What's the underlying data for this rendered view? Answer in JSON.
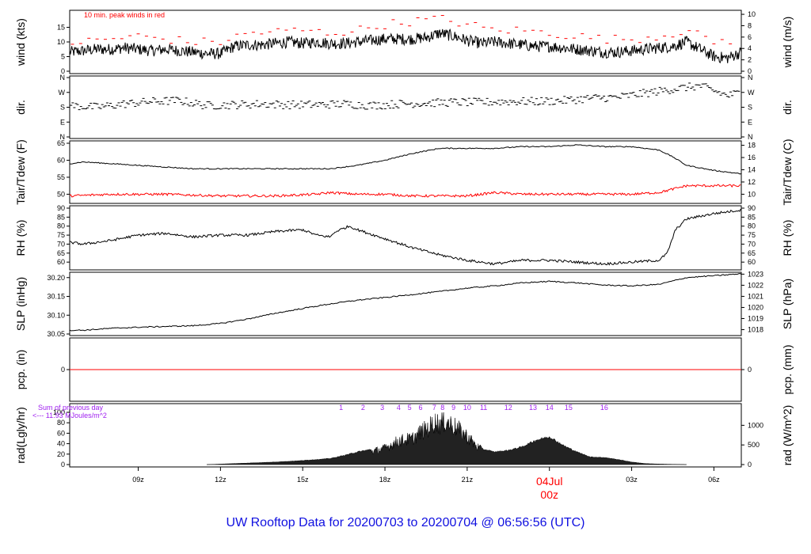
{
  "title": "UW Rooftop Data for 20200703  to  20200704 @ 06:56:56  (UTC)",
  "colors": {
    "title": "#1010e0",
    "peak": "#ff0000",
    "dew": "#ff0000",
    "rad_note": "#a020f0",
    "line": "#000000"
  },
  "x_axis": {
    "ticks": [
      "09z",
      "12z",
      "15z",
      "18z",
      "21z",
      "00z",
      "03z",
      "06z"
    ],
    "date_label": "04Jul",
    "date_tick_label": "00z"
  },
  "chart_data": [
    {
      "id": "wind",
      "type": "line",
      "ylabel_left": "wind (kts)",
      "ylabel_right": "wind (m/s)",
      "annotation": "10 min. peak winds in red",
      "yticks_left": [
        0,
        5,
        10,
        15
      ],
      "yticks_right": [
        0,
        2,
        4,
        6,
        8,
        10
      ],
      "ylim": [
        0,
        20
      ],
      "series": [
        {
          "key": "wind",
          "hours": [
            6.5,
            7,
            7.5,
            8,
            8.5,
            9,
            9.5,
            10,
            10.5,
            11,
            11.5,
            12,
            12.5,
            13,
            13.5,
            14,
            14.5,
            15,
            15.5,
            16,
            16.5,
            17,
            17.5,
            18,
            18.5,
            19,
            19.5,
            20,
            20.5,
            21,
            21.5,
            22,
            22.5,
            23,
            23.5,
            24,
            24.5,
            25,
            25.5,
            26,
            26.5,
            27,
            27.5,
            28,
            28.5,
            29,
            29.5,
            30,
            30.5,
            31
          ],
          "values": [
            6.5,
            7,
            7.5,
            7.5,
            8,
            7.5,
            7,
            7.5,
            7,
            6.5,
            6,
            6,
            8.5,
            9,
            9,
            9.5,
            10,
            9.5,
            10,
            9.5,
            9.5,
            10,
            10.5,
            11,
            11,
            11,
            11.5,
            13,
            12,
            10.5,
            9.5,
            10,
            9.5,
            9,
            8.5,
            8.5,
            8,
            7.5,
            7,
            6.5,
            6.5,
            7,
            7.5,
            8,
            8.5,
            10,
            7.5,
            5,
            4.5,
            6.5
          ]
        },
        {
          "key": "peak",
          "hours": [
            7,
            8,
            9,
            10,
            11,
            12,
            13,
            14,
            15,
            16,
            17,
            18,
            19,
            20,
            21,
            22,
            23,
            24,
            25,
            26,
            27,
            28,
            29,
            30,
            31
          ],
          "values": [
            10,
            11,
            12,
            11,
            10,
            10,
            13,
            13.5,
            14,
            13,
            14,
            16,
            17,
            18,
            16,
            14,
            14,
            13,
            12,
            11,
            11,
            12,
            14,
            10,
            11
          ]
        }
      ]
    },
    {
      "id": "dir",
      "type": "scatter",
      "ylabel_left": "dir.",
      "ylabel_right": "dir.",
      "ytick_labels": [
        "N",
        "E",
        "S",
        "W",
        "N"
      ],
      "yticks_deg": [
        0,
        90,
        180,
        270,
        360
      ],
      "ylim": [
        0,
        360
      ],
      "series": [
        {
          "key": "dir",
          "hours": [
            6.5,
            7.5,
            8.5,
            9.5,
            10.5,
            11.5,
            12.5,
            13.5,
            14.5,
            15.5,
            16.5,
            17.5,
            18.5,
            19.5,
            20.5,
            21.5,
            22.5,
            23.5,
            24.5,
            25.5,
            26.5,
            27.5,
            28.5,
            29.5,
            30.5,
            31
          ],
          "values": [
            190,
            180,
            200,
            215,
            220,
            190,
            195,
            200,
            195,
            195,
            200,
            190,
            200,
            205,
            210,
            210,
            215,
            215,
            220,
            235,
            240,
            265,
            290,
            310,
            250,
            270
          ]
        }
      ]
    },
    {
      "id": "temp",
      "type": "line",
      "ylabel_left": "Tair/Tdew (F)",
      "ylabel_right": "Tair/Tdew (C)",
      "yticks_left": [
        50,
        55,
        60,
        65
      ],
      "yticks_right": [
        10,
        12,
        14,
        16,
        18
      ],
      "ylim": [
        48,
        65
      ],
      "series": [
        {
          "key": "tair",
          "hours": [
            6.5,
            7,
            8,
            9,
            10,
            11,
            12,
            13,
            14,
            15,
            16,
            17,
            18,
            19,
            20,
            21,
            22,
            23,
            24,
            25,
            26,
            27,
            28,
            28.5,
            29,
            30,
            31
          ],
          "values": [
            59,
            59.5,
            59,
            58.5,
            58,
            57.5,
            57.5,
            57.5,
            57.5,
            57.5,
            57.5,
            58.5,
            60,
            62,
            63.5,
            63.5,
            63.5,
            64,
            64,
            64.5,
            64,
            64,
            63,
            61,
            58.5,
            57,
            56
          ]
        },
        {
          "key": "tdew",
          "hours": [
            6.5,
            8,
            10,
            12,
            14,
            15.5,
            16,
            17,
            18,
            19,
            20,
            21,
            22,
            23,
            24,
            25,
            26,
            27,
            28,
            28.5,
            29,
            30,
            31
          ],
          "values": [
            49.5,
            50,
            50,
            49.5,
            49.5,
            50,
            50.5,
            50,
            50,
            49.5,
            49.5,
            49.5,
            50.5,
            50,
            50,
            50,
            50,
            50,
            50.5,
            51.5,
            52.5,
            52.5,
            52.5
          ]
        }
      ]
    },
    {
      "id": "rh",
      "type": "line",
      "ylabel_left": "RH (%)",
      "ylabel_right": "RH (%)",
      "yticks": [
        60,
        65,
        70,
        75,
        80,
        85,
        90
      ],
      "ylim": [
        57,
        90
      ],
      "series": [
        {
          "key": "rh",
          "hours": [
            6.5,
            7,
            8,
            9,
            10,
            11,
            12,
            13,
            14,
            15,
            15.5,
            16,
            16.2,
            16.7,
            17,
            18,
            19,
            20,
            21,
            22,
            23,
            24,
            25,
            26,
            27,
            28,
            28.3,
            28.6,
            29,
            30,
            31
          ],
          "values": [
            71,
            70,
            72,
            75,
            76,
            74,
            75,
            75,
            77,
            78,
            75,
            74,
            77,
            80,
            78,
            73,
            68,
            64,
            61,
            59,
            61,
            61,
            60,
            59,
            60,
            61,
            65,
            78,
            84,
            87,
            89
          ]
        }
      ]
    },
    {
      "id": "slp",
      "type": "line",
      "ylabel_left": "SLP (inHg)",
      "ylabel_right": "SLP (hPa)",
      "yticks_left_values": [
        30.05,
        30.1,
        30.15,
        30.2
      ],
      "yticks_left_labels": [
        "30.05",
        "30.10",
        "30.15",
        "30.20"
      ],
      "yticks_right_values": [
        1018,
        1019,
        1020,
        1021,
        1022,
        1023
      ],
      "yticks_right_labels": [
        "1018",
        "1019",
        "1020",
        "1021",
        "1022",
        "1023"
      ],
      "ylim": [
        30.05,
        30.21
      ],
      "series": [
        {
          "key": "slp",
          "hours": [
            6.5,
            7,
            8,
            9,
            10,
            11,
            12,
            13,
            14,
            15,
            16,
            17,
            18,
            19,
            20,
            21,
            22,
            23,
            24,
            25,
            26,
            27,
            28,
            29,
            30,
            31
          ],
          "values": [
            30.06,
            30.06,
            30.065,
            30.068,
            30.07,
            30.072,
            30.078,
            30.09,
            30.105,
            30.118,
            30.13,
            30.14,
            30.147,
            30.155,
            30.163,
            30.172,
            30.178,
            30.186,
            30.19,
            30.186,
            30.18,
            30.178,
            30.182,
            30.2,
            30.205,
            30.21
          ]
        }
      ]
    },
    {
      "id": "pcp",
      "type": "line",
      "ylabel_left": "pcp. (in)",
      "ylabel_right": "pcp. (mm)",
      "ytick_left": "0",
      "ytick_right": "0",
      "ylim": [
        -1,
        1
      ],
      "series": [
        {
          "key": "pcp",
          "hours": [
            6.5,
            31
          ],
          "values": [
            0,
            0
          ]
        }
      ]
    },
    {
      "id": "rad",
      "type": "area",
      "ylabel_left": "rad(Lgly/hr)",
      "ylabel_right": "rad (W/m^2)",
      "note_line1": "Sum of previous day",
      "note_line2": "<--- 11.93 MJoules/m^2",
      "yticks_left": [
        0,
        20,
        40,
        60,
        80,
        100
      ],
      "yticks_right": [
        0,
        500,
        1000
      ],
      "ylim": [
        0,
        100
      ],
      "hour_labels": [
        "1",
        "2",
        "3",
        "4",
        "5",
        "6",
        "7",
        "8",
        "9",
        "10",
        "11",
        "12",
        "13",
        "14",
        "15",
        "16"
      ],
      "hour_label_positions": [
        16.4,
        17.2,
        17.9,
        18.5,
        18.9,
        19.3,
        19.8,
        20.1,
        20.5,
        21.0,
        21.6,
        22.5,
        23.4,
        24.0,
        24.7,
        26.0
      ],
      "series": [
        {
          "key": "rad",
          "hours": [
            11.5,
            12,
            13,
            14,
            15,
            16,
            16.5,
            17,
            17.5,
            18,
            18.5,
            19,
            19.3,
            19.6,
            19.8,
            20,
            20.2,
            20.5,
            21,
            21.3,
            21.6,
            22,
            22.5,
            23,
            23.5,
            24,
            24.5,
            25,
            25.5,
            26,
            26.5,
            27,
            27.5,
            28,
            28.5,
            29
          ],
          "values": [
            0,
            1,
            3,
            5,
            8,
            12,
            18,
            25,
            30,
            38,
            55,
            60,
            75,
            85,
            98,
            94,
            100,
            90,
            65,
            45,
            30,
            25,
            28,
            35,
            48,
            55,
            38,
            25,
            15,
            14,
            10,
            5,
            2,
            1,
            0.5,
            0
          ]
        }
      ]
    }
  ]
}
